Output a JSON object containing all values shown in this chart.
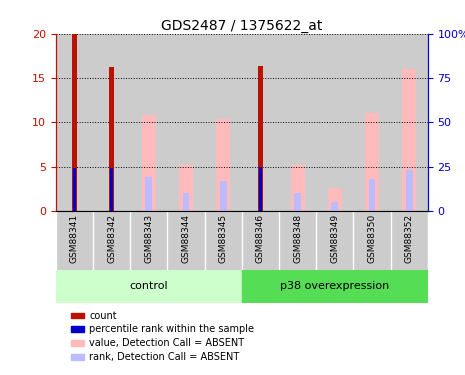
{
  "title": "GDS2487 / 1375622_at",
  "samples": [
    "GSM88341",
    "GSM88342",
    "GSM88343",
    "GSM88344",
    "GSM88345",
    "GSM88346",
    "GSM88348",
    "GSM88349",
    "GSM88350",
    "GSM88352"
  ],
  "red_bars": [
    20.0,
    16.3,
    0.0,
    0.0,
    0.0,
    16.4,
    0.0,
    0.0,
    0.0,
    0.0
  ],
  "blue_bars": [
    4.8,
    4.8,
    0.0,
    0.0,
    0.0,
    5.0,
    0.0,
    0.0,
    0.0,
    0.0
  ],
  "pink_bars": [
    0.0,
    0.0,
    10.8,
    5.2,
    10.4,
    0.0,
    5.2,
    2.6,
    11.0,
    16.0
  ],
  "lightblue_bars": [
    0.0,
    0.0,
    3.8,
    2.0,
    3.4,
    0.0,
    2.0,
    1.0,
    3.6,
    4.6
  ],
  "ylim_left": [
    0,
    20
  ],
  "ylim_right": [
    0,
    100
  ],
  "yticks_left": [
    0,
    5,
    10,
    15,
    20
  ],
  "yticks_right": [
    0,
    25,
    50,
    75,
    100
  ],
  "ytick_labels_right": [
    "0",
    "25",
    "50",
    "75",
    "100%"
  ],
  "color_red": "#bb1100",
  "color_blue": "#0000cc",
  "color_pink": "#ffbbbb",
  "color_lightblue": "#bbbbff",
  "color_bg_sample": "#cccccc",
  "color_control": "#ccffcc",
  "color_p38": "#55dd55",
  "control_indices": [
    0,
    1,
    2,
    3,
    4
  ],
  "p38_indices": [
    5,
    6,
    7,
    8,
    9
  ],
  "legend_items": [
    {
      "label": "count",
      "color": "#bb1100"
    },
    {
      "label": "percentile rank within the sample",
      "color": "#0000cc"
    },
    {
      "label": "value, Detection Call = ABSENT",
      "color": "#ffbbbb"
    },
    {
      "label": "rank, Detection Call = ABSENT",
      "color": "#bbbbff"
    }
  ]
}
